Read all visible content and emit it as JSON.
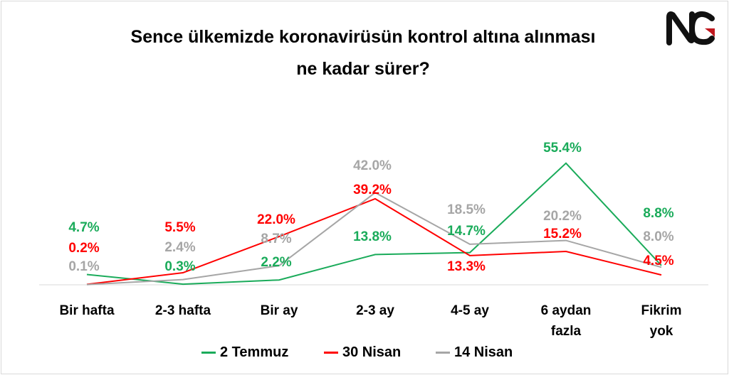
{
  "chart_data": {
    "type": "line",
    "title": [
      "Sence ülkemizde koronavirüsün kontrol altına alınması",
      "ne kadar sürer?"
    ],
    "categories": [
      "Bir hafta",
      "2-3 hafta",
      "Bir ay",
      "2-3 ay",
      "4-5 ay",
      "6 aydan fazla",
      "Fikrim yok"
    ],
    "category_lines": [
      [
        "Bir hafta"
      ],
      [
        "2-3 hafta"
      ],
      [
        "Bir ay"
      ],
      [
        "2-3 ay"
      ],
      [
        "4-5 ay"
      ],
      [
        "6 aydan",
        "fazla"
      ],
      [
        "Fikrim yok"
      ]
    ],
    "ylim": [
      0,
      60
    ],
    "grid": false,
    "legend_position": "bottom",
    "series": [
      {
        "name": "2 Temmuz",
        "color": "#1aab5a",
        "values": [
          4.7,
          0.3,
          2.2,
          13.8,
          14.7,
          55.4,
          8.8
        ],
        "labels": [
          "4.7%",
          "0.3%",
          "2.2%",
          "13.8%",
          "14.7%",
          "55.4%",
          "8.8%"
        ]
      },
      {
        "name": "30 Nisan",
        "color": "#ff0000",
        "values": [
          0.2,
          5.5,
          22.0,
          39.2,
          13.3,
          15.2,
          4.5
        ],
        "labels": [
          "0.2%",
          "5.5%",
          "22.0%",
          "39.2%",
          "13.3%",
          "15.2%",
          "4.5%"
        ]
      },
      {
        "name": "14 Nisan",
        "color": "#a6a6a6",
        "values": [
          0.1,
          2.4,
          8.7,
          42.0,
          18.5,
          20.2,
          8.0
        ],
        "labels": [
          "0.1%",
          "2.4%",
          "8.7%",
          "42.0%",
          "18.5%",
          "20.2%",
          "8.0%"
        ]
      }
    ]
  },
  "logo": {
    "text": "NG"
  }
}
